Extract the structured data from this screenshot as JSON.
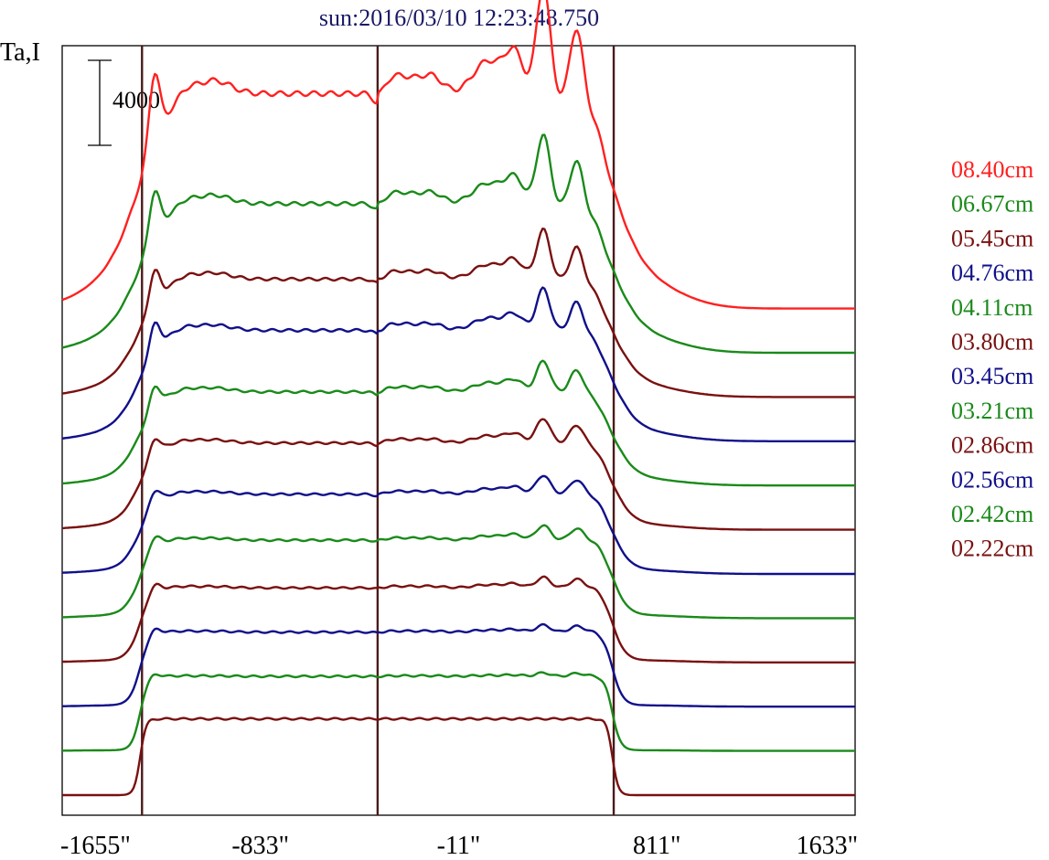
{
  "chart_data": {
    "type": "line",
    "title": "sun:2016/03/10 12:23:48.750",
    "ylabel": "Ta,I",
    "scale_bar_label": "4000",
    "x_tick_labels": [
      "-1655\"",
      "-833\"",
      "-11\"",
      "811\"",
      "1633\""
    ],
    "x_ticks": [
      -1655,
      -833,
      -11,
      811,
      1633
    ],
    "xlim": [
      -1655,
      1633
    ],
    "vertical_lines": [
      -1324,
      -347,
      632
    ],
    "limb_edges": [
      -1332,
      627
    ],
    "grid": false,
    "legend_position": "right",
    "series": [
      {
        "name": "08.40cm",
        "color": "#ff2020",
        "offset": 11,
        "amp": 6.2
      },
      {
        "name": "06.67cm",
        "color": "#1a8a1a",
        "offset": 10,
        "amp": 4.3
      },
      {
        "name": "05.45cm",
        "color": "#7a1010",
        "offset": 9,
        "amp": 3.4
      },
      {
        "name": "04.76cm",
        "color": "#10108a",
        "offset": 8,
        "amp": 3.2
      },
      {
        "name": "04.11cm",
        "color": "#1a8a1a",
        "offset": 7,
        "amp": 2.7
      },
      {
        "name": "03.80cm",
        "color": "#7a1010",
        "offset": 6,
        "amp": 2.5
      },
      {
        "name": "03.45cm",
        "color": "#10108a",
        "offset": 5,
        "amp": 2.3
      },
      {
        "name": "03.21cm",
        "color": "#1a8a1a",
        "offset": 4,
        "amp": 2.25
      },
      {
        "name": "02.86cm",
        "color": "#7a1010",
        "offset": 3,
        "amp": 2.15
      },
      {
        "name": "02.56cm",
        "color": "#10108a",
        "offset": 2,
        "amp": 2.15
      },
      {
        "name": "02.42cm",
        "color": "#1a8a1a",
        "offset": 1,
        "amp": 2.15
      },
      {
        "name": "02.22cm",
        "color": "#7a1010",
        "offset": 0,
        "amp": 2.2
      }
    ]
  }
}
